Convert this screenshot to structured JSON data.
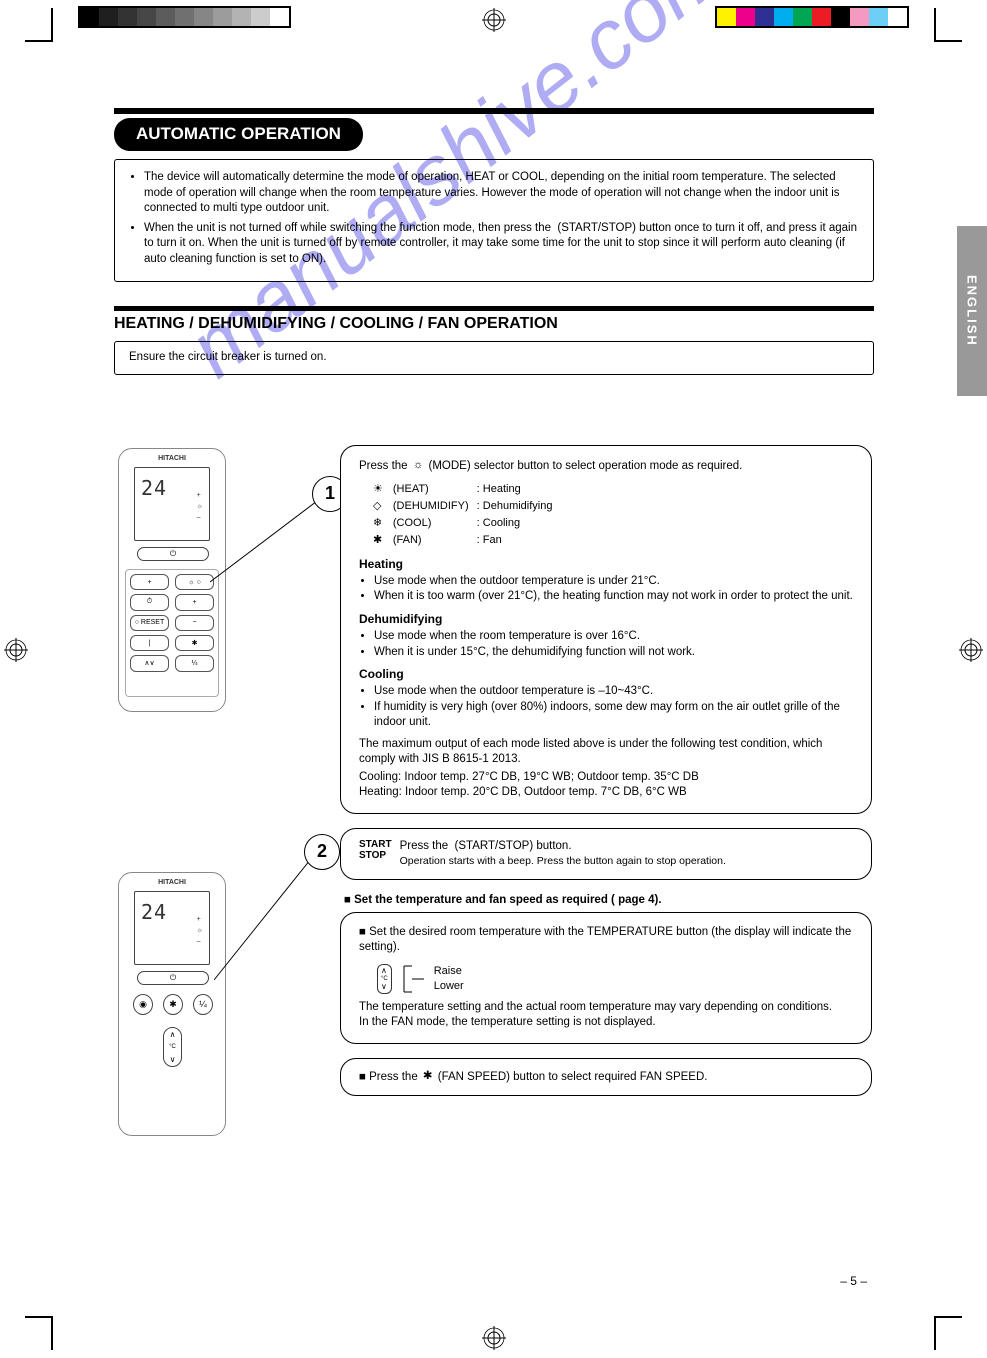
{
  "tab_label": "ENGLISH",
  "watermark_text": "manualshive.com",
  "page_number": "– 5 –",
  "registration": {
    "greyscale_colors": [
      "#000000",
      "#1f1f1f",
      "#333333",
      "#474747",
      "#5c5c5c",
      "#707070",
      "#868686",
      "#9c9c9c",
      "#b3b3b3",
      "#cccccc",
      "#ffffff"
    ],
    "color_bars": [
      "#fff200",
      "#ec008c",
      "#2e3192",
      "#00aeef",
      "#00a651",
      "#ed1c24",
      "#000000",
      "#f49ac1",
      "#6dcff6",
      "#ffffff"
    ]
  },
  "pill_title": "AUTOMATIC OPERATION",
  "auto_note_bullets": [
    "The device will automatically determine the mode of operation, HEAT or COOL, depending on the initial room temperature. The selected mode of operation will change when the room temperature varies. However the mode of operation will not change when the indoor unit is connected to multi type outdoor unit.",
    "When the unit is not turned off while switching the function mode, then press the \u0018 (START/STOP) button once to turn it off, and press it again to turn it on. When the unit is turned off by remote controller, it may take some time for the unit to stop since it will perform auto cleaning (if auto cleaning function is set to ON)."
  ],
  "section2_title": "HEATING / DEHUMIDIFYING / COOLING / FAN OPERATION",
  "section2_intro": "Ensure the circuit breaker is turned on.",
  "box1": {
    "callout": "1",
    "lead": "Press the    (MODE) selector button to select operation mode as required.",
    "rows": [
      [
        "(HEAT)",
        ": Heating"
      ],
      [
        "(DEHUMIDIFY)",
        ": Dehumidifying"
      ],
      [
        "(COOL)",
        ": Cooling"
      ],
      [
        "(FAN)",
        ": Fan"
      ]
    ],
    "h_heating": "Heating",
    "b_heating": [
      "Use mode when the outdoor temperature is under 21°C.",
      "When it is too warm (over 21°C), the heating function may not work in order to protect the unit."
    ],
    "h_dehum": "Dehumidifying",
    "b_dehum": [
      "Use mode when the room temperature is over 16°C.",
      "When it is under 15°C, the dehumidifying function will not work."
    ],
    "h_cool": "Cooling",
    "b_cool": [
      "Use mode when the outdoor temperature is –10~43°C.",
      "If humidity is very high (over 80%) indoors, some dew may form on the air outlet grille of the indoor unit."
    ],
    "warn": "The maximum output of each mode listed above is under the following test condition, which comply with JIS B 8615-1 2013.",
    "cond_lines": [
      "Cooling: Indoor temp. 27°C DB, 19°C WB; Outdoor temp. 35°C DB",
      "Heating: Indoor temp. 20°C DB, Outdoor temp. 7°C DB, 6°C WB"
    ]
  },
  "box2": {
    "callout": "2",
    "label_start": "START",
    "label_stop": "STOP",
    "start_text": "Press the \u0018 (START/STOP) button.",
    "start_sub": "Operation starts with a beep. Press the button again to stop operation."
  },
  "sub_temp_fan": "■ Set the temperature and fan speed as required (    page 4).",
  "box3": {
    "head": "■ Set the desired room temperature with the TEMPERATURE button (the display will indicate the setting).",
    "up_label": "Raise",
    "down_label": "Lower",
    "tail": "The temperature setting and the actual room temperature may vary depending on conditions.",
    "tail2": "In the FAN mode, the temperature setting is not displayed."
  },
  "box4": {
    "text": "■ Press the     (FAN SPEED) button to select required FAN SPEED."
  },
  "remote": {
    "brand": "HITACHI",
    "display_reading": "24",
    "small_labels": {
      "plus": "+",
      "minus": "–",
      "mode": "☼",
      "stopstart": "⏻"
    },
    "r2_buttons": [
      "◉",
      "✱",
      "¼"
    ],
    "rocker": {
      "up": "∧",
      "mid": "°C",
      "down": "∨"
    },
    "panel_labels": [
      "",
      "",
      "",
      "",
      "",
      "RESET",
      "",
      "",
      "",
      "",
      "",
      "",
      "",
      ""
    ]
  }
}
